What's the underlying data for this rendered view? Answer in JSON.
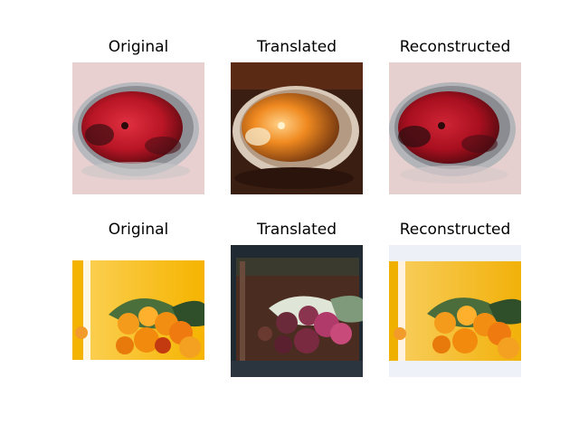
{
  "rows": [
    {
      "panels": [
        {
          "title": "Original"
        },
        {
          "title": "Translated"
        },
        {
          "title": "Reconstructed"
        }
      ]
    },
    {
      "panels": [
        {
          "title": "Original"
        },
        {
          "title": "Translated"
        },
        {
          "title": "Reconstructed"
        }
      ]
    }
  ]
}
